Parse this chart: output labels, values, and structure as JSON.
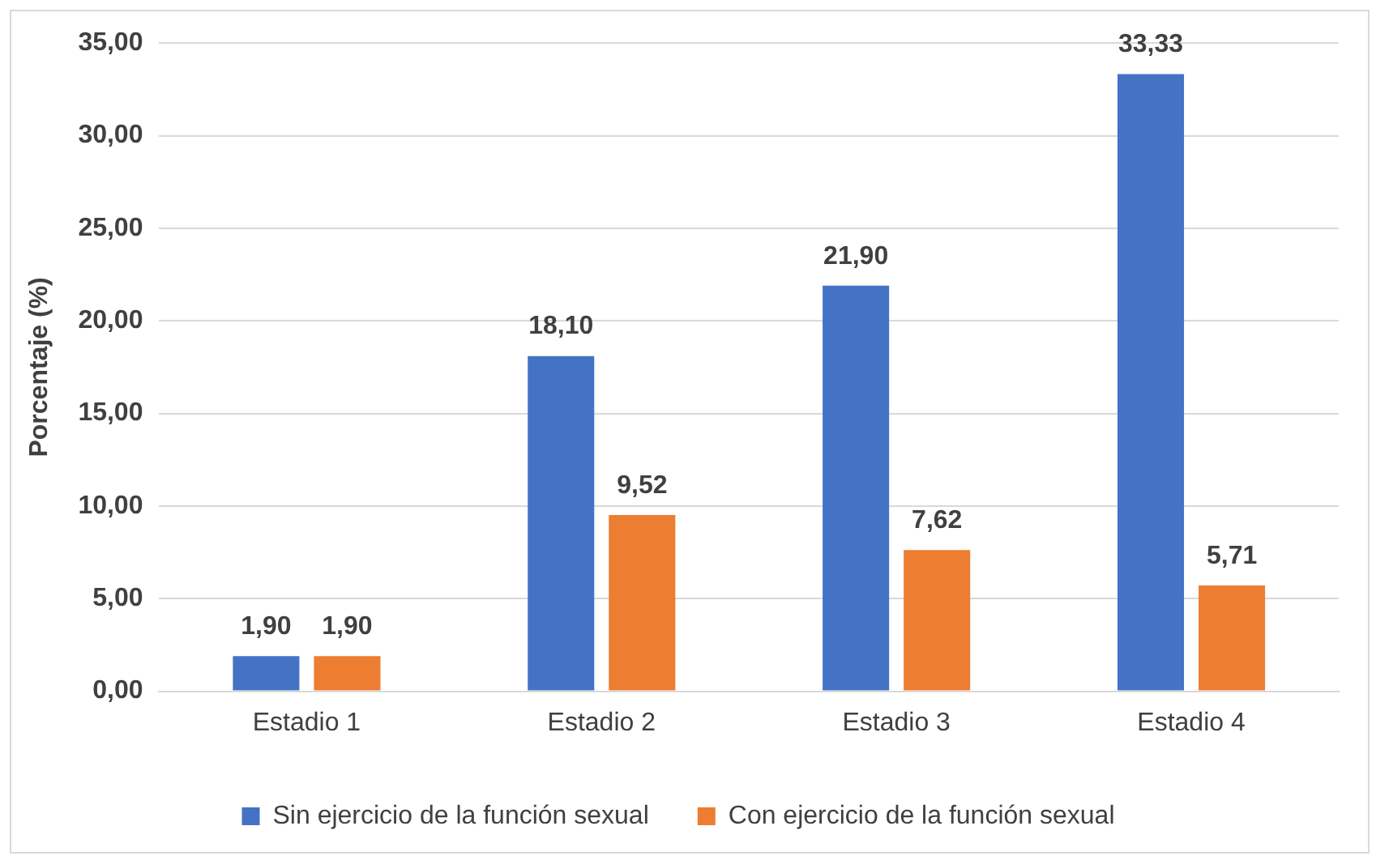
{
  "chart_data": {
    "type": "bar",
    "ylabel": "Porcentaje (%)",
    "categories": [
      "Estadio 1",
      "Estadio 2",
      "Estadio 3",
      "Estadio 4"
    ],
    "series": [
      {
        "name": "Sin ejercicio de la función sexual",
        "color": "#4472c4",
        "values": [
          1.9,
          18.1,
          21.9,
          33.33
        ],
        "value_labels": [
          "1,90",
          "18,10",
          "21,90",
          "33,33"
        ]
      },
      {
        "name": "Con ejercicio de la función sexual",
        "color": "#ed7d31",
        "values": [
          1.9,
          9.52,
          7.62,
          5.71
        ],
        "value_labels": [
          "1,90",
          "9,52",
          "7,62",
          "5,71"
        ]
      }
    ],
    "ylim": [
      0,
      35
    ],
    "yticks": [
      {
        "value": 0,
        "label": "0,00"
      },
      {
        "value": 5,
        "label": "5,00"
      },
      {
        "value": 10,
        "label": "10,00"
      },
      {
        "value": 15,
        "label": "15,00"
      },
      {
        "value": 20,
        "label": "20,00"
      },
      {
        "value": 25,
        "label": "25,00"
      },
      {
        "value": 30,
        "label": "30,00"
      },
      {
        "value": 35,
        "label": "35,00"
      }
    ],
    "grid": "y",
    "legend": "bottom"
  }
}
